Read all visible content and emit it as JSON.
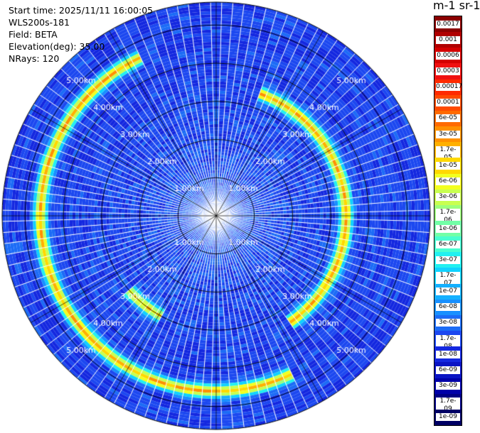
{
  "info": {
    "start_time": "Start time: 2025/11/11 16:00:05",
    "instrument": "WLS200s-181",
    "field": "Field: BETA",
    "elevation": "Elevation(deg): 35.00",
    "nrays": "NRays: 120"
  },
  "colorbar": {
    "title": "m-1 sr-1",
    "labels": [
      "0.0017",
      "0.001",
      "0.0006",
      "0.0003",
      "0.00017",
      "0.0001",
      "6e-05",
      "3e-05",
      "1.7e-05",
      "1e-05",
      "6e-06",
      "3e-06",
      "1.7e-06",
      "1e-06",
      "6e-07",
      "3e-07",
      "1.7e-07",
      "1e-07",
      "6e-08",
      "3e-08",
      "1.7e-08",
      "1e-08",
      "6e-09",
      "3e-09",
      "1.7e-09",
      "1e-09"
    ],
    "colors": [
      "#8b0000",
      "#b00000",
      "#d40000",
      "#f01010",
      "#ff2a00",
      "#ff4a00",
      "#ff6a00",
      "#ff9000",
      "#ffb000",
      "#ffd800",
      "#f2ff20",
      "#c8ff50",
      "#9cff7c",
      "#72ffa6",
      "#48ffd0",
      "#22f0f0",
      "#10d2ff",
      "#14b0ff",
      "#1890ff",
      "#1c6cf6",
      "#1c48f0",
      "#1428e0",
      "#0a14c4",
      "#0000a8",
      "#000084",
      "#000064"
    ]
  },
  "chart_data": {
    "type": "heatmap",
    "projection": "polar PPI",
    "field": "BETA",
    "elevation_deg": 35.0,
    "n_rays": 120,
    "range_ring_labels": [
      "1.00km",
      "2.00km",
      "3.00km",
      "4.00km",
      "5.00km"
    ],
    "range_rings_km": [
      1,
      2,
      3,
      4,
      5
    ],
    "max_range_km": 5.6,
    "color_scale": "log",
    "colorbar_range": [
      1e-09,
      0.0017
    ],
    "colorbar_ticks": [
      0.0017,
      0.001,
      0.0006,
      0.0003,
      0.00017,
      0.0001,
      6e-05,
      3e-05,
      1.7e-05,
      1e-05,
      6e-06,
      3e-06,
      1.7e-06,
      1e-06,
      6e-07,
      3e-07,
      1.7e-07,
      1e-07,
      6e-08,
      3e-08,
      1.7e-08,
      1e-08,
      6e-09,
      3e-09,
      1.7e-09,
      1e-09
    ],
    "enhanced_returns": [
      {
        "feature": "inner ring",
        "range_km": 3.4,
        "az_from_deg": 20,
        "az_to_deg": 145,
        "level": 1.7e-05
      },
      {
        "feature": "outer band",
        "range_km": 4.6,
        "az_from_deg": 155,
        "az_to_deg": 335,
        "level": 1.7e-05
      },
      {
        "feature": "arc",
        "range_km": 3.0,
        "az_from_deg": 210,
        "az_to_deg": 230,
        "level": 1e-05
      }
    ]
  }
}
